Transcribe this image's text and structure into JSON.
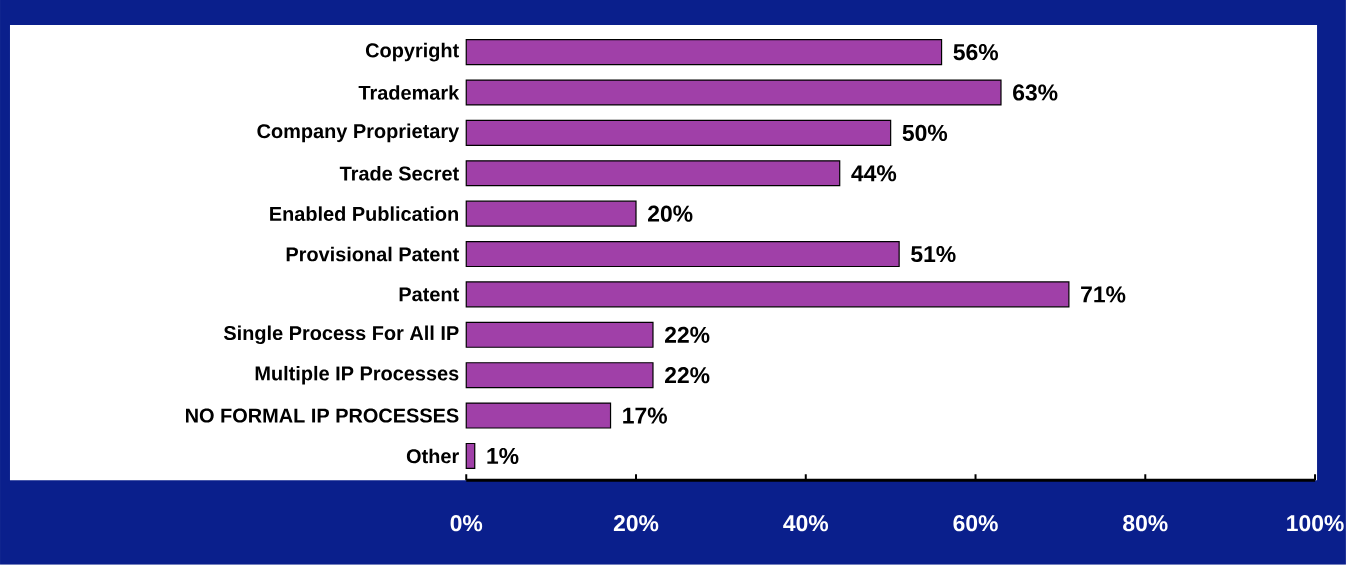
{
  "chart_data": {
    "type": "bar",
    "orientation": "horizontal",
    "categories": [
      "Copyright",
      "Trademark",
      "Company Proprietary",
      "Trade Secret",
      "Enabled Publication",
      "Provisional Patent",
      "Patent",
      "Single Process For All IP",
      "Multiple IP Processes",
      "NO FORMAL IP PROCESSES",
      "Other"
    ],
    "values": [
      56,
      63,
      50,
      44,
      20,
      51,
      71,
      22,
      22,
      17,
      1
    ],
    "value_labels": [
      "56%",
      "63%",
      "50%",
      "44%",
      "20%",
      "51%",
      "71%",
      "22%",
      "22%",
      "17%",
      "1%"
    ],
    "color": "#a040a8",
    "xlim": [
      0,
      100
    ],
    "xticks": [
      {
        "value": 0,
        "label": "0%"
      },
      {
        "value": 20,
        "label": "20%"
      },
      {
        "value": 40,
        "label": "40%"
      },
      {
        "value": 60,
        "label": "60%"
      },
      {
        "value": 80,
        "label": "80%"
      },
      {
        "value": 100,
        "label": "100%"
      }
    ],
    "grid": false
  }
}
